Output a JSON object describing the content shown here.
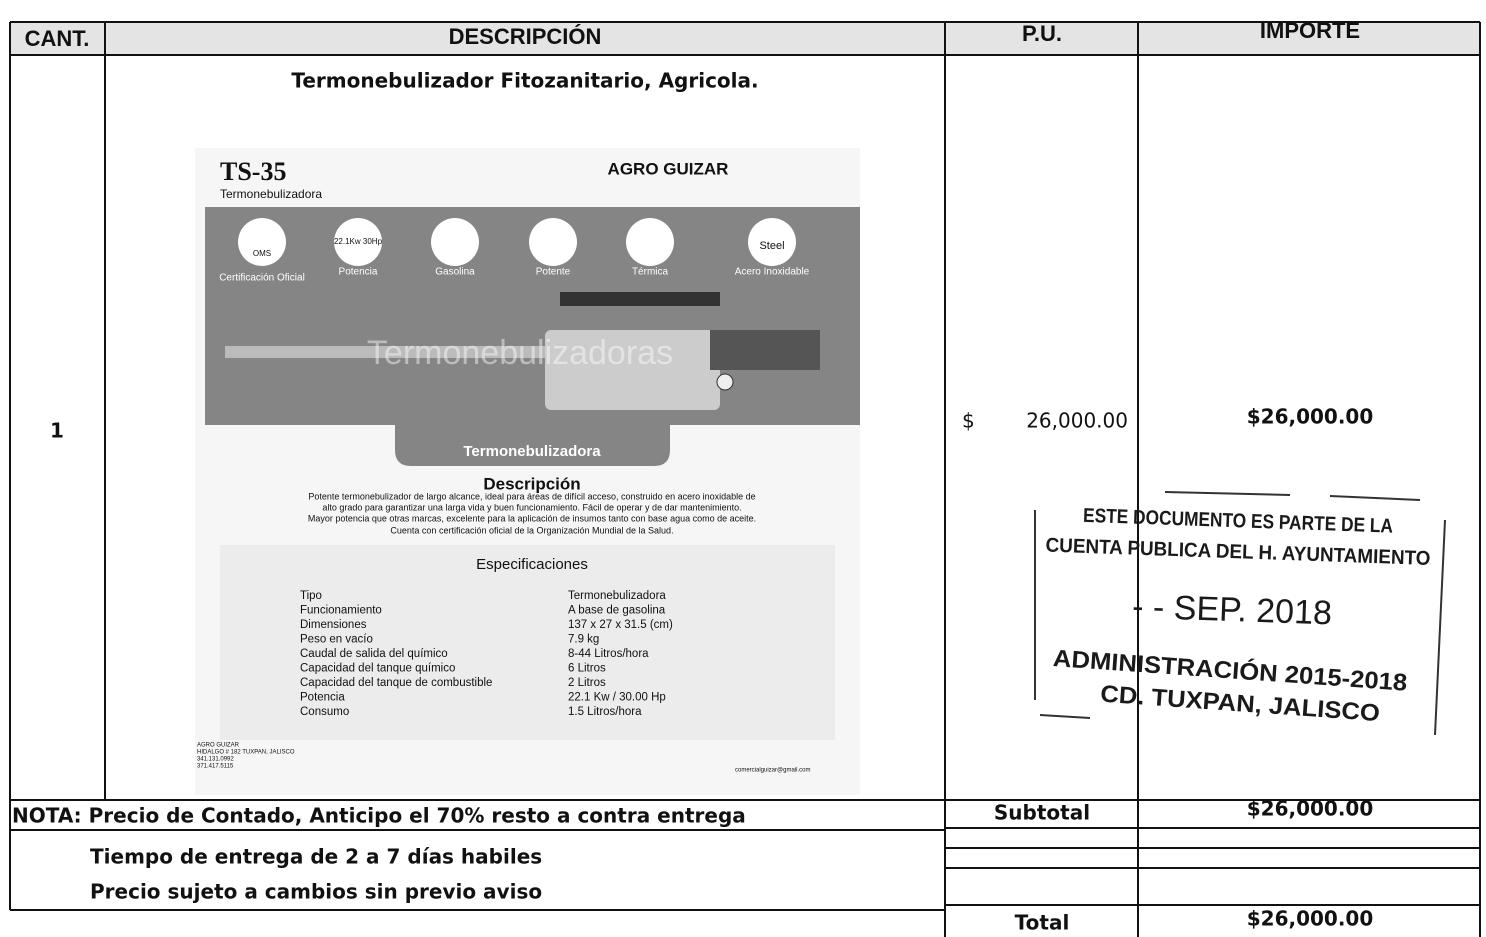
{
  "table": {
    "headers": [
      "CANT.",
      "DESCRIPCIÓN",
      "P.U.",
      "IMPORTE"
    ],
    "item": {
      "quantity": "1",
      "description": "Termonebulizador Fitozanitario, Agricola.",
      "unit_price_symbol": "$",
      "unit_price": "26,000.00",
      "amount": "$26,000.00"
    },
    "notes": [
      "NOTA: Precio de Contado, Anticipo el 70% resto a contra entrega",
      "Tiempo de entrega de 2 a 7 días habiles",
      "Precio sujeto a cambios sin previo aviso"
    ],
    "subtotal_label": "Subtotal",
    "subtotal": "$26,000.00",
    "total_label": "Total",
    "total": "$26,000.00"
  },
  "product_sheet": {
    "model": "TS-35",
    "subtitle": "Termonebulizadora",
    "brand": "AGRO GUIZAR",
    "icons": [
      {
        "inner": "OMS",
        "label": "Certificación Oficial"
      },
      {
        "inner": "22.1Kw 30Hp",
        "label": "Potencia"
      },
      {
        "inner": "",
        "label": "Gasolina"
      },
      {
        "inner": "",
        "label": "Potente"
      },
      {
        "inner": "",
        "label": "Térmica"
      },
      {
        "inner": "Steel",
        "label": "Acero Inoxidable"
      }
    ],
    "watermark": "Termonebulizadoras",
    "banner": "Termonebulizadora",
    "description_title": "Descripción",
    "description_lines": [
      "Potente termonebulizador de largo alcance, ideal para áreas de difícil acceso, construido en acero inoxidable de",
      "alto grado para garantizar una larga vida y buen funcionamiento. Fácil de operar y de dar mantenimiento.",
      "Mayor potencia que otras marcas, excelente para la aplicación de insumos tanto con base agua como de aceite.",
      "Cuenta con certificación oficial de la Organización Mundial de la Salud."
    ],
    "specs_title": "Especificaciones",
    "specs": [
      [
        "Tipo",
        "Termonebulizadora"
      ],
      [
        "Funcionamiento",
        "A base de gasolina"
      ],
      [
        "Dimensiones",
        "137 x 27 x 31.5 (cm)"
      ],
      [
        "Peso en vacío",
        "7.9 kg"
      ],
      [
        "Caudal de salida del químico",
        "8-44 Litros/hora"
      ],
      [
        "Capacidad del tanque químico",
        "6 Litros"
      ],
      [
        "Capacidad del tanque de combustible",
        "2 Litros"
      ],
      [
        "Potencia",
        "22.1 Kw / 30.00 Hp"
      ],
      [
        "Consumo",
        "1.5 Litros/hora"
      ]
    ],
    "footer_lines": [
      "AGRO GUIZAR",
      "HIDALGO # 182 TUXPAN, JALISCO",
      "341.131.0992",
      "371.417.5115"
    ],
    "footer_email": "comercialguizar@gmail.com"
  },
  "stamp": {
    "lines": [
      "ESTE DOCUMENTO ES PARTE DE LA",
      "CUENTA PUBLICA DEL H. AYUNTAMIENTO",
      "- - SEP. 2018",
      "ADMINISTRACIÓN 2015-2018",
      "CD. TUXPAN, JALISCO"
    ]
  }
}
